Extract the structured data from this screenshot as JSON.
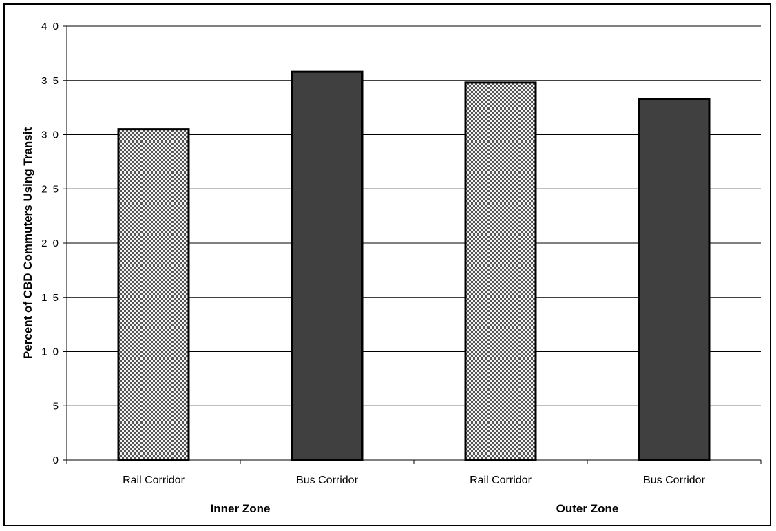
{
  "chart_data": {
    "type": "bar",
    "title": "",
    "xlabel": "",
    "ylabel": "Percent of CBD Commuters Using Transit",
    "ylim": [
      0,
      40
    ],
    "yticks": [
      0,
      5,
      10,
      15,
      20,
      25,
      30,
      35,
      40
    ],
    "ytick_labels": [
      "0",
      "5",
      "1 0",
      "1 5",
      "2 0",
      "2 5",
      "3 0",
      "3 5",
      "4 0"
    ],
    "grid": true,
    "legend": "none",
    "groups": [
      {
        "label": "Inner Zone",
        "categories": [
          "Rail Corridor",
          "Bus Corridor"
        ]
      },
      {
        "label": "Outer Zone",
        "categories": [
          "Rail Corridor",
          "Bus Corridor"
        ]
      }
    ],
    "categories": [
      "Rail Corridor",
      "Bus Corridor",
      "Rail Corridor",
      "Bus Corridor"
    ],
    "values": [
      30.5,
      35.8,
      34.8,
      33.3
    ],
    "bar_styles": [
      "checker",
      "solid",
      "checker",
      "solid"
    ],
    "colors": {
      "solid_fill": "#404040",
      "checker_dark": "#555555",
      "checker_light": "#f2f2f2",
      "bar_outline": "#000000",
      "grid": "#000000"
    }
  }
}
